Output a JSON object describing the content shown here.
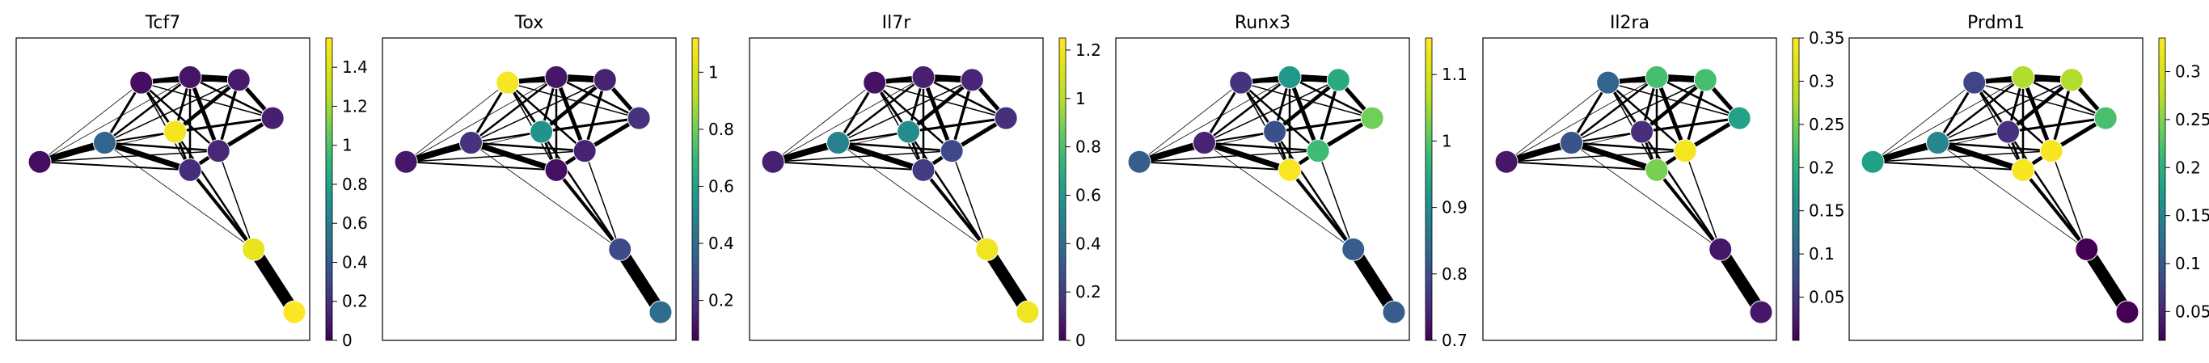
{
  "figure": {
    "background": "#ffffff",
    "edge_color": "#000000",
    "node_outline": "#ffffff",
    "colormap": "viridis"
  },
  "chart_data": {
    "type": "graph",
    "description": "PAGA graph colored by gene expression",
    "nodes": [
      {
        "id": 0,
        "x": 0.045,
        "y": 0.6
      },
      {
        "id": 1,
        "x": 0.285,
        "y": 0.67
      },
      {
        "id": 2,
        "x": 0.42,
        "y": 0.89
      },
      {
        "id": 3,
        "x": 0.6,
        "y": 0.91
      },
      {
        "id": 4,
        "x": 0.78,
        "y": 0.9
      },
      {
        "id": 5,
        "x": 0.905,
        "y": 0.76
      },
      {
        "id": 6,
        "x": 0.705,
        "y": 0.64
      },
      {
        "id": 7,
        "x": 0.545,
        "y": 0.71
      },
      {
        "id": 8,
        "x": 0.6,
        "y": 0.57
      },
      {
        "id": 9,
        "x": 0.835,
        "y": 0.28
      },
      {
        "id": 10,
        "x": 0.985,
        "y": 0.05
      }
    ],
    "edges": [
      {
        "a": 9,
        "b": 10,
        "w": 15
      },
      {
        "a": 0,
        "b": 1,
        "w": 8
      },
      {
        "a": 1,
        "b": 8,
        "w": 7
      },
      {
        "a": 3,
        "b": 4,
        "w": 8
      },
      {
        "a": 2,
        "b": 3,
        "w": 6
      },
      {
        "a": 4,
        "b": 5,
        "w": 5
      },
      {
        "a": 3,
        "b": 6,
        "w": 5
      },
      {
        "a": 6,
        "b": 5,
        "w": 5
      },
      {
        "a": 7,
        "b": 4,
        "w": 4.5
      },
      {
        "a": 6,
        "b": 8,
        "w": 4.5
      },
      {
        "a": 8,
        "b": 9,
        "w": 4
      },
      {
        "a": 1,
        "b": 2,
        "w": 3
      },
      {
        "a": 2,
        "b": 7,
        "w": 3
      },
      {
        "a": 3,
        "b": 7,
        "w": 3
      },
      {
        "a": 4,
        "b": 6,
        "w": 3.5
      },
      {
        "a": 7,
        "b": 8,
        "w": 3
      },
      {
        "a": 7,
        "b": 5,
        "w": 3
      },
      {
        "a": 1,
        "b": 3,
        "w": 2.5
      },
      {
        "a": 1,
        "b": 6,
        "w": 2.5
      },
      {
        "a": 2,
        "b": 6,
        "w": 2.5
      },
      {
        "a": 3,
        "b": 5,
        "w": 2.5
      },
      {
        "a": 7,
        "b": 9,
        "w": 2.5
      },
      {
        "a": 3,
        "b": 8,
        "w": 2.5
      },
      {
        "a": 2,
        "b": 4,
        "w": 2
      },
      {
        "a": 0,
        "b": 8,
        "w": 2
      },
      {
        "a": 1,
        "b": 7,
        "w": 2
      },
      {
        "a": 1,
        "b": 5,
        "w": 1.5
      },
      {
        "a": 0,
        "b": 6,
        "w": 1.5
      },
      {
        "a": 2,
        "b": 5,
        "w": 1.5
      },
      {
        "a": 1,
        "b": 4,
        "w": 1.5
      },
      {
        "a": 6,
        "b": 9,
        "w": 1.5
      },
      {
        "a": 2,
        "b": 8,
        "w": 1.5
      },
      {
        "a": 0,
        "b": 2,
        "w": 0.8
      },
      {
        "a": 0,
        "b": 3,
        "w": 0.8
      },
      {
        "a": 1,
        "b": 9,
        "w": 0.8
      },
      {
        "a": 0,
        "b": 7,
        "w": 0.8
      }
    ],
    "panels": [
      {
        "title": "Tcf7",
        "colorbar": {
          "min": 0,
          "max": 1.55,
          "ticks": [
            0,
            0.2,
            0.4,
            0.6,
            0.8,
            1,
            1.2,
            1.4
          ],
          "tick_labels": [
            "0",
            "0.2",
            "0.4",
            "0.6",
            "0.8",
            "1",
            "1.2",
            "1.4"
          ]
        },
        "values": [
          0.05,
          0.45,
          0.05,
          0.08,
          0.1,
          0.12,
          0.15,
          1.5,
          0.18,
          1.45,
          1.55
        ]
      },
      {
        "title": "Tox",
        "colorbar": {
          "min": 0.06,
          "max": 1.12,
          "ticks": [
            0.2,
            0.4,
            0.6,
            0.8,
            1
          ],
          "tick_labels": [
            "0.2",
            "0.4",
            "0.6",
            "0.8",
            "1"
          ]
        },
        "values": [
          0.12,
          0.2,
          1.1,
          0.12,
          0.15,
          0.2,
          0.15,
          0.55,
          0.1,
          0.28,
          0.4
        ]
      },
      {
        "title": "Il7r",
        "colorbar": {
          "min": 0,
          "max": 1.25,
          "ticks": [
            0,
            0.2,
            0.4,
            0.6,
            0.8,
            1,
            1.2
          ],
          "tick_labels": [
            "0",
            "0.2",
            "0.4",
            "0.6",
            "0.8",
            "1",
            "1.2"
          ]
        },
        "values": [
          0.1,
          0.5,
          0.05,
          0.1,
          0.12,
          0.15,
          0.25,
          0.55,
          0.2,
          1.2,
          1.2
        ]
      },
      {
        "title": "Runx3",
        "colorbar": {
          "min": 0.7,
          "max": 1.155,
          "ticks": [
            0.7,
            0.8,
            0.9,
            1,
            1.1
          ],
          "tick_labels": [
            "0.7",
            "0.8",
            "0.9",
            "1",
            "1.1"
          ]
        },
        "values": [
          0.82,
          0.74,
          0.76,
          0.92,
          0.95,
          1.02,
          0.98,
          0.8,
          1.15,
          0.82,
          0.82
        ]
      },
      {
        "title": "Il2ra",
        "colorbar": {
          "min": 0,
          "max": 0.35,
          "ticks": [
            0.05,
            0.1,
            0.15,
            0.2,
            0.25,
            0.3,
            0.35
          ],
          "tick_labels": [
            "0.05",
            "0.1",
            "0.15",
            "0.2",
            "0.25",
            "0.3",
            "0.35"
          ]
        },
        "values": [
          0.02,
          0.08,
          0.1,
          0.22,
          0.22,
          0.18,
          0.34,
          0.04,
          0.25,
          0.02,
          0.02
        ]
      },
      {
        "title": "Prdm1",
        "colorbar": {
          "min": 0.02,
          "max": 0.335,
          "ticks": [
            0.05,
            0.1,
            0.15,
            0.2,
            0.25,
            0.3
          ],
          "tick_labels": [
            "0.05",
            "0.1",
            "0.15",
            "0.2",
            "0.25",
            "0.3"
          ]
        },
        "values": [
          0.18,
          0.15,
          0.08,
          0.27,
          0.27,
          0.22,
          0.33,
          0.06,
          0.33,
          0.02,
          0.02
        ]
      }
    ]
  }
}
